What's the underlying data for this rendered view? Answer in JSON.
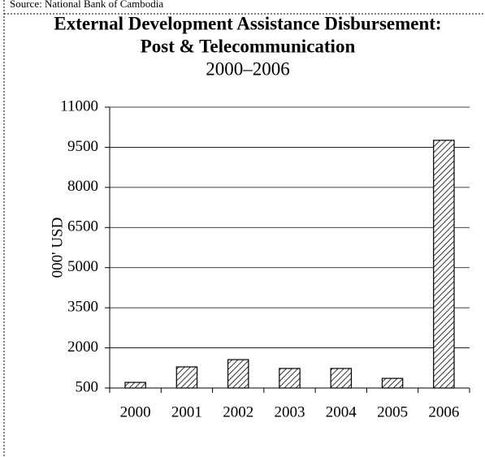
{
  "chart_data": {
    "type": "bar",
    "source": "Source: National Bank of Cambodia",
    "title": [
      "External Development Assistance Disbursement:",
      "Post & Telecommunication"
    ],
    "subtitle": "2000–2006",
    "y_label": "000' USD",
    "categories": [
      "2000",
      "2001",
      "2002",
      "2003",
      "2004",
      "2005",
      "2006"
    ],
    "values": [
      710,
      1290,
      1560,
      1230,
      1230,
      860,
      9760
    ],
    "color": "#ffffff",
    "ylim": [
      500,
      11000
    ],
    "yticks": [
      500,
      2000,
      3500,
      5000,
      6500,
      8000,
      9500,
      11000
    ],
    "grid": true
  }
}
